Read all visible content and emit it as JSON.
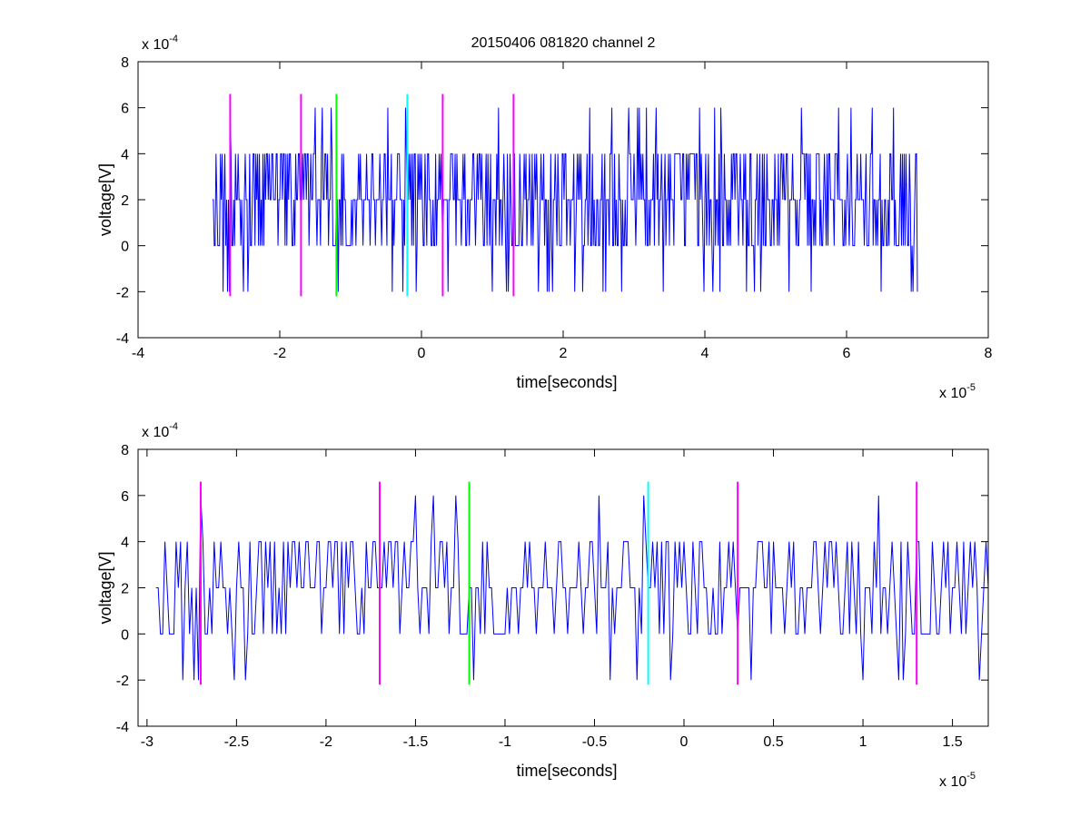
{
  "figure_title": "20150406 081820 channel 2",
  "colors": {
    "signal": "#0000ff",
    "marker_magenta": "#ff00ff",
    "marker_green": "#00ff00",
    "marker_cyan": "#00ffff",
    "axes": "#000000"
  },
  "chart_data": [
    {
      "type": "line",
      "title": "20150406 081820 channel 2",
      "xlabel": "time[seconds]",
      "ylabel": "voltage[V]",
      "x_exponent_label": "x 10",
      "x_exponent_power": "-5",
      "y_exponent_label": "x 10",
      "y_exponent_power": "-4",
      "xlim": [
        -4,
        8
      ],
      "ylim": [
        -4,
        8
      ],
      "xticks": [
        -4,
        -2,
        0,
        2,
        4,
        6,
        8
      ],
      "yticks": [
        -4,
        -2,
        0,
        2,
        4,
        6,
        8
      ],
      "xtick_labels": [
        "-4",
        "-2",
        "0",
        "2",
        "4",
        "6",
        "8"
      ],
      "ytick_labels": [
        "-4",
        "-2",
        "0",
        "2",
        "4",
        "6",
        "8"
      ],
      "grid": false,
      "signal_x_range": [
        -2.95,
        7.0
      ],
      "signal_levels": [
        -2,
        0,
        2,
        4,
        6
      ],
      "markers": [
        {
          "x": -2.7,
          "ymin": -2.2,
          "ymax": 6.6,
          "color": "magenta"
        },
        {
          "x": -1.7,
          "ymin": -2.2,
          "ymax": 6.6,
          "color": "magenta"
        },
        {
          "x": -1.2,
          "ymin": -2.2,
          "ymax": 6.6,
          "color": "green"
        },
        {
          "x": -0.2,
          "ymin": -2.2,
          "ymax": 6.6,
          "color": "cyan"
        },
        {
          "x": 0.3,
          "ymin": -2.2,
          "ymax": 6.6,
          "color": "magenta"
        },
        {
          "x": 1.3,
          "ymin": -2.2,
          "ymax": 6.6,
          "color": "magenta"
        }
      ]
    },
    {
      "type": "line",
      "title": "",
      "xlabel": "time[seconds]",
      "ylabel": "voltage[V]",
      "x_exponent_label": "x 10",
      "x_exponent_power": "-5",
      "y_exponent_label": "x 10",
      "y_exponent_power": "-4",
      "xlim": [
        -3.05,
        1.7
      ],
      "ylim": [
        -4,
        8
      ],
      "xticks": [
        -3,
        -2.5,
        -2,
        -1.5,
        -1,
        -0.5,
        0,
        0.5,
        1,
        1.5
      ],
      "yticks": [
        -4,
        -2,
        0,
        2,
        4,
        6,
        8
      ],
      "xtick_labels": [
        "-3",
        "-2.5",
        "-2",
        "-1.5",
        "-1",
        "-0.5",
        "0",
        "0.5",
        "1",
        "1.5"
      ],
      "ytick_labels": [
        "-4",
        "-2",
        "0",
        "2",
        "4",
        "6",
        "8"
      ],
      "grid": false,
      "signal_x_range": [
        -2.95,
        1.7
      ],
      "signal_levels": [
        -2,
        0,
        2,
        4,
        6
      ],
      "markers": [
        {
          "x": -2.7,
          "ymin": -2.2,
          "ymax": 6.6,
          "color": "magenta"
        },
        {
          "x": -1.7,
          "ymin": -2.2,
          "ymax": 6.6,
          "color": "magenta"
        },
        {
          "x": -1.2,
          "ymin": -2.2,
          "ymax": 6.6,
          "color": "green"
        },
        {
          "x": -0.2,
          "ymin": -2.2,
          "ymax": 6.6,
          "color": "cyan"
        },
        {
          "x": 0.3,
          "ymin": -2.2,
          "ymax": 6.6,
          "color": "magenta"
        },
        {
          "x": 1.3,
          "ymin": -2.2,
          "ymax": 6.6,
          "color": "magenta"
        }
      ]
    }
  ]
}
